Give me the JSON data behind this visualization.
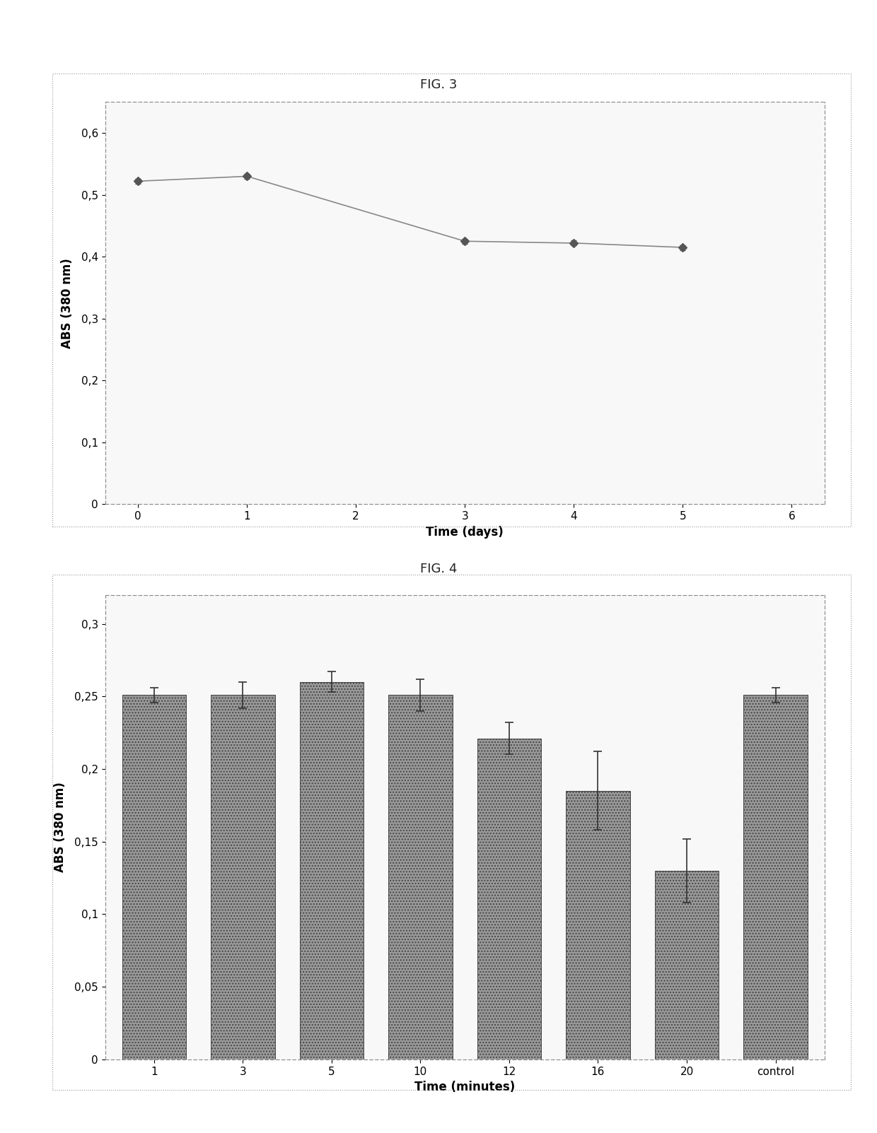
{
  "fig3": {
    "title": "FIG. 3",
    "x": [
      0,
      1,
      3,
      4,
      5
    ],
    "y": [
      0.522,
      0.53,
      0.425,
      0.422,
      0.415
    ],
    "yerr": [
      0.004,
      0.004,
      0.004,
      0.004,
      0.004
    ],
    "xlabel": "Time (days)",
    "ylabel": "ABS (380 nm)",
    "xlim": [
      -0.3,
      6.3
    ],
    "ylim": [
      0,
      0.65
    ],
    "xticks": [
      0,
      1,
      2,
      3,
      4,
      5,
      6
    ],
    "yticks": [
      0,
      0.1,
      0.2,
      0.3,
      0.4,
      0.5,
      0.6
    ],
    "ytick_labels": [
      "0",
      "0,1",
      "0,2",
      "0,3",
      "0,4",
      "0,5",
      "0,6"
    ],
    "line_color": "#888888",
    "marker_color": "#555555",
    "marker_size": 6
  },
  "fig4": {
    "title": "FIG. 4",
    "categories": [
      "1",
      "3",
      "5",
      "10",
      "12",
      "16",
      "20",
      "control"
    ],
    "values": [
      0.251,
      0.251,
      0.26,
      0.251,
      0.221,
      0.185,
      0.13,
      0.251
    ],
    "errors": [
      0.005,
      0.009,
      0.007,
      0.011,
      0.011,
      0.027,
      0.022,
      0.005
    ],
    "xlabel": "Time (minutes)",
    "ylabel": "ABS (380 nm)",
    "ylim": [
      0,
      0.32
    ],
    "yticks": [
      0,
      0.05,
      0.1,
      0.15,
      0.2,
      0.25,
      0.3
    ],
    "ytick_labels": [
      "0",
      "0,05",
      "0,1",
      "0,15",
      "0,2",
      "0,25",
      "0,3"
    ],
    "bar_color": "#999999",
    "bar_edge_color": "#444444",
    "error_color": "#333333"
  },
  "background_color": "#ffffff",
  "panel_bg": "#f8f8f8"
}
